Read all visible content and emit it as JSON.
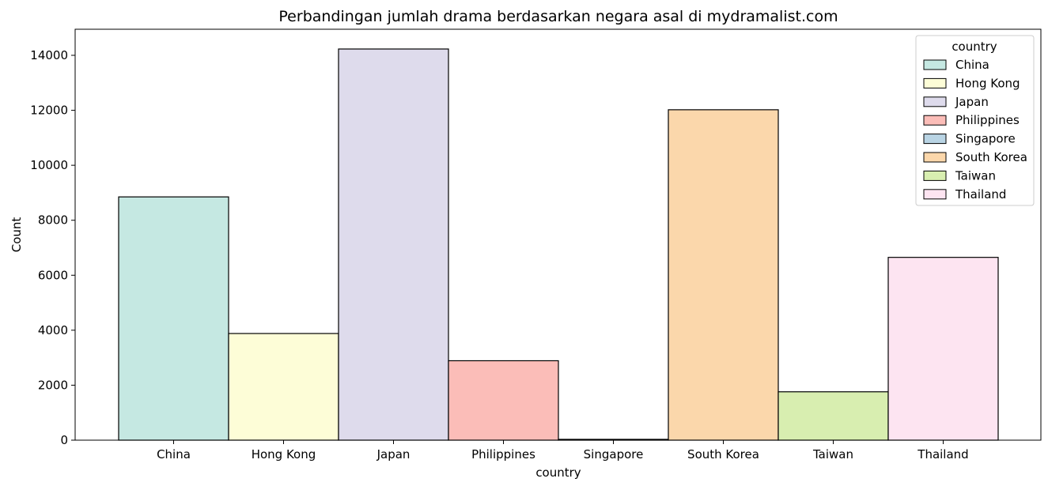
{
  "chart_data": {
    "type": "bar",
    "title": "Perbandingan jumlah drama berdasarkan negara asal di mydramalist.com",
    "xlabel": "country",
    "ylabel": "Count",
    "categories": [
      "China",
      "Hong Kong",
      "Japan",
      "Philippines",
      "Singapore",
      "South Korea",
      "Taiwan",
      "Thailand"
    ],
    "values": [
      8850,
      3880,
      14230,
      2890,
      30,
      12020,
      1760,
      6650
    ],
    "colors": [
      "#c5e8e2",
      "#fdfdd7",
      "#dedbec",
      "#fbbdb8",
      "#b9d4e4",
      "#fbd7ab",
      "#d8eeb0",
      "#fde4f1"
    ],
    "ylim": [
      0,
      15000
    ],
    "yticks": [
      0,
      2000,
      4000,
      6000,
      8000,
      10000,
      12000,
      14000
    ],
    "ytick_labels": [
      "0",
      "2000",
      "4000",
      "6000",
      "8000",
      "10000",
      "12000",
      "14000"
    ],
    "legend": {
      "title": "country",
      "placement": "top-right",
      "entries": [
        "China",
        "Hong Kong",
        "Japan",
        "Philippines",
        "Singapore",
        "South Korea",
        "Taiwan",
        "Thailand"
      ]
    },
    "grid": false
  }
}
